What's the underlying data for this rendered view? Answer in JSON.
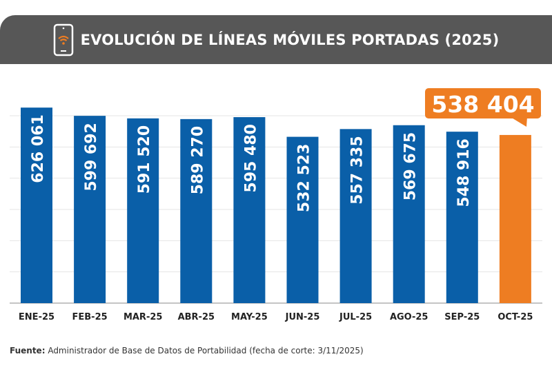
{
  "header": {
    "title": "EVOLUCIÓN DE LÍNEAS MÓVILES PORTADAS (2025)",
    "icon": "smartphone-wifi-icon"
  },
  "chart_data": {
    "type": "bar",
    "title": "EVOLUCIÓN DE LÍNEAS MÓVILES PORTADAS (2025)",
    "categories": [
      "ENE-25",
      "FEB-25",
      "MAR-25",
      "ABR-25",
      "MAY-25",
      "JUN-25",
      "JUL-25",
      "AGO-25",
      "SEP-25",
      "OCT-25"
    ],
    "values": [
      626061,
      599692,
      591520,
      589270,
      595480,
      532523,
      557335,
      569675,
      548916,
      538404
    ],
    "labels": [
      "626 061",
      "599 692",
      "591 520",
      "589 270",
      "595 480",
      "532 523",
      "557 335",
      "569 675",
      "548 916",
      "538 404"
    ],
    "ylim": [
      0,
      600000
    ],
    "grid": true,
    "colors": {
      "default": "#0a5fa8",
      "highlight": "#ee7d22"
    },
    "highlight_index": 9
  },
  "footer": {
    "source_label": "Fuente:",
    "source_text": " Administrador de Base de Datos de Portabilidad (fecha de corte: 3/11/2025)"
  }
}
